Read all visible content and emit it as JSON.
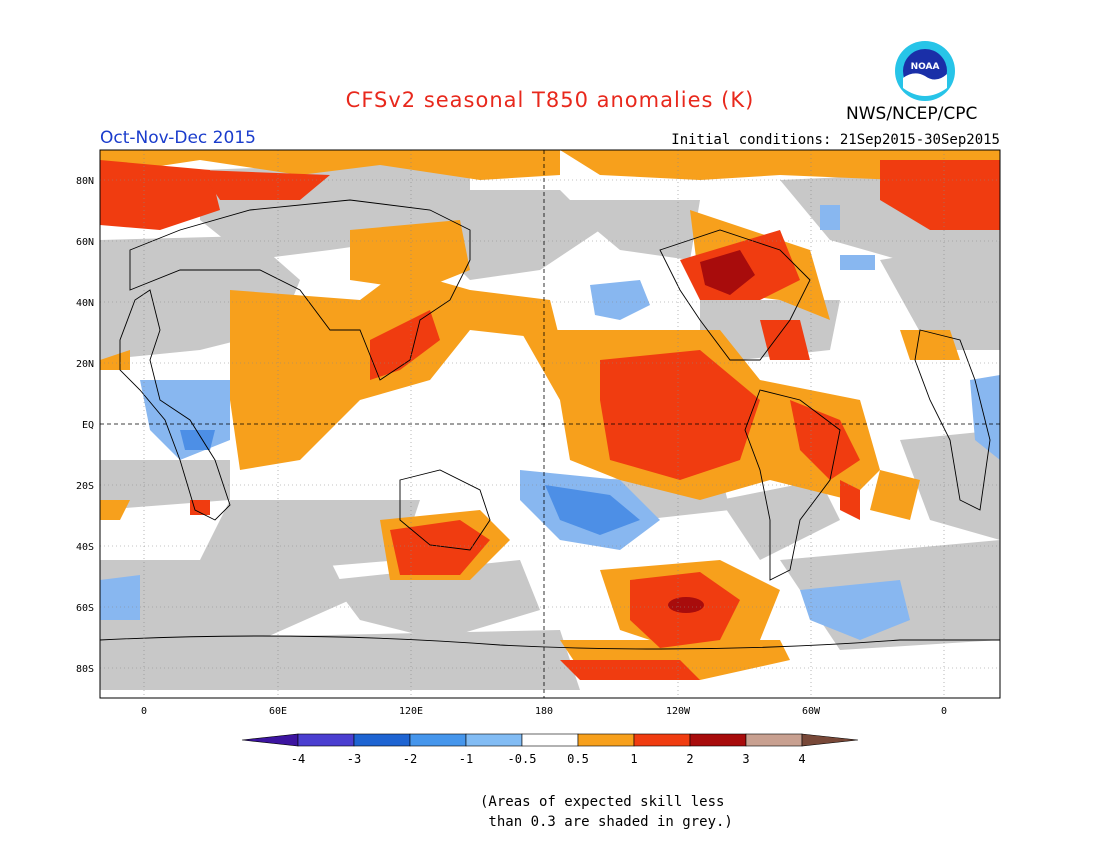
{
  "title": "CFSv2 seasonal T850 anomalies (K)",
  "period": "Oct-Nov-Dec 2015",
  "initial_conditions": "Initial conditions: 21Sep2015-30Sep2015",
  "agency": "NWS/NCEP/CPC",
  "logo_text": "NOAA",
  "colors": {
    "title": "#e8281c",
    "period": "#1a3ccc",
    "grey_mask": "#c8c8c8",
    "neg_strong": "#2a4bd0",
    "neg_mid": "#4d8fe6",
    "neg_light": "#88b7f0",
    "pos_light": "#f7a01c",
    "pos_mid": "#f03c10",
    "pos_strong": "#a80c0c"
  },
  "map": {
    "lat_labels": [
      "80N",
      "60N",
      "40N",
      "20N",
      "EQ",
      "20S",
      "40S",
      "60S",
      "80S"
    ],
    "lon_labels": [
      "0",
      "60E",
      "120E",
      "180",
      "120W",
      "60W",
      "0"
    ]
  },
  "legend": {
    "labels": [
      "-4",
      "-3",
      "-2",
      "-1",
      "-0.5",
      "0.5",
      "1",
      "2",
      "3",
      "4"
    ],
    "colors": [
      "#3c14a0",
      "#4a3ed0",
      "#1e64d2",
      "#4696ec",
      "#82bcf4",
      "#ffffff",
      "#f7a01c",
      "#f03c10",
      "#a80c0c",
      "#c8a090",
      "#784838"
    ]
  },
  "note": "(Areas of expected skill less\n than 0.3 are shaded in grey.)"
}
